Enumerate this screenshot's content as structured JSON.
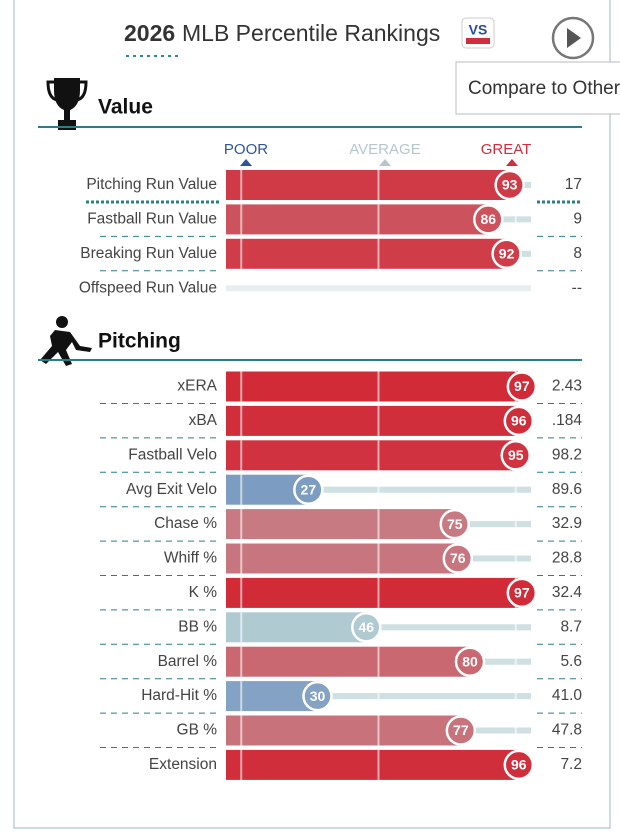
{
  "header": {
    "year": "2026",
    "title": "MLB Percentile Rankings",
    "tooltip": "Compare to Other"
  },
  "scale": {
    "poor": "POOR",
    "average": "AVERAGE",
    "great": "GREAT"
  },
  "sections": [
    {
      "title": "Value",
      "rows": [
        {
          "label": "Pitching Run Value",
          "percentile": 93,
          "value": "17"
        },
        {
          "label": "Fastball Run Value",
          "percentile": 86,
          "value": "9"
        },
        {
          "label": "Breaking Run Value",
          "percentile": 92,
          "value": "8"
        },
        {
          "label": "Offspeed Run Value",
          "percentile": null,
          "value": "--"
        }
      ]
    },
    {
      "title": "Pitching",
      "rows": [
        {
          "label": "xERA",
          "percentile": 97,
          "value": "2.43"
        },
        {
          "label": "xBA",
          "percentile": 96,
          "value": ".184"
        },
        {
          "label": "Fastball Velo",
          "percentile": 95,
          "value": "98.2"
        },
        {
          "label": "Avg Exit Velo",
          "percentile": 27,
          "value": "89.6"
        },
        {
          "label": "Chase %",
          "percentile": 75,
          "value": "32.9"
        },
        {
          "label": "Whiff %",
          "percentile": 76,
          "value": "28.8"
        },
        {
          "label": "K %",
          "percentile": 97,
          "value": "32.4"
        },
        {
          "label": "BB %",
          "percentile": 46,
          "value": "8.7"
        },
        {
          "label": "Barrel %",
          "percentile": 80,
          "value": "5.6"
        },
        {
          "label": "Hard-Hit %",
          "percentile": 30,
          "value": "41.0"
        },
        {
          "label": "GB %",
          "percentile": 77,
          "value": "47.8"
        },
        {
          "label": "Extension",
          "percentile": 96,
          "value": "7.2"
        }
      ]
    }
  ]
}
